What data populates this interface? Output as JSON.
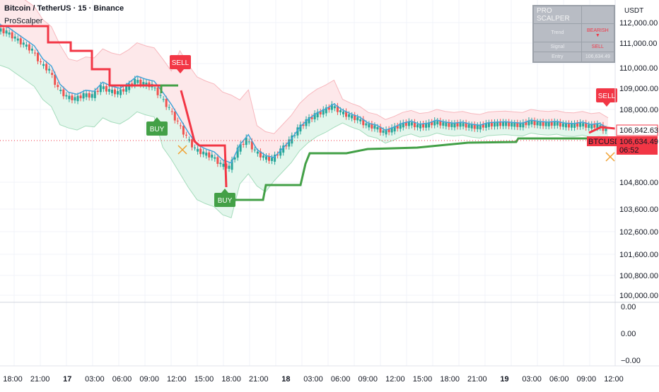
{
  "header": {
    "symbol_title": "Bitcoin / TetherUS · 15 · Binance",
    "indicator_name": "ProScalper",
    "currency": "USDT"
  },
  "hud": {
    "title": "PRO SCALPER",
    "rows": [
      {
        "label": "Trend",
        "value": "BEARISH ▼"
      },
      {
        "label": "Signal",
        "value": "SELL"
      },
      {
        "label": "Entry",
        "value": "106,634.49"
      }
    ]
  },
  "price_axis": {
    "labels": [
      "112,000.00",
      "111,000.00",
      "110,000.00",
      "109,000.00",
      "108,000.00",
      "104,800.00",
      "103,600.00",
      "102,600.00",
      "101,600.00",
      "100,800.00",
      "100,000.00"
    ],
    "current_price": "106,842.63",
    "last_price": "106,634.49",
    "ticker": "BTCUSDT",
    "countdown": "06:52"
  },
  "sub_axis": {
    "labels": [
      "0.00",
      "0.00",
      "−0.00"
    ]
  },
  "time_axis": {
    "labels": [
      "18:00",
      "21:00",
      "17",
      "03:00",
      "06:00",
      "09:00",
      "12:00",
      "15:00",
      "18:00",
      "21:00",
      "18",
      "03:00",
      "06:00",
      "09:00",
      "12:00",
      "15:00",
      "18:00",
      "21:00",
      "19",
      "03:00",
      "06:00",
      "09:00",
      "12:00"
    ],
    "bold": [
      "17",
      "18",
      "19"
    ]
  },
  "signals": [
    {
      "type": "SELL",
      "label": "SELL"
    },
    {
      "type": "BUY",
      "label": "BUY"
    },
    {
      "type": "BUY",
      "label": "BUY"
    },
    {
      "type": "SELL",
      "label": "SELL"
    }
  ],
  "colors": {
    "bear": "#f23645",
    "bull": "#43a047",
    "candle_up": "#26a69a",
    "candle_down": "#ef5350",
    "midline": "#42a5d8",
    "upper_band_fill": "#fde8ea",
    "lower_band_fill": "#e3f6ec",
    "cross": "#f0a030"
  },
  "chart_data": {
    "type": "candlestick",
    "symbol": "BTCUSDT",
    "interval": "15",
    "ylim": [
      99800,
      112400
    ],
    "close_series": [
      111650,
      111500,
      111200,
      110900,
      110600,
      109950,
      109600,
      108700,
      108300,
      108200,
      108400,
      108350,
      108800,
      108600,
      108500,
      108750,
      109100,
      108950,
      108850,
      108300,
      107700,
      107000,
      106300,
      105700,
      105500,
      105350,
      104950,
      104800,
      105700,
      106200,
      105600,
      105300,
      105200,
      105650,
      106100,
      106700,
      107100,
      107400,
      107600,
      107850,
      107550,
      107350,
      107200,
      106900,
      106800,
      106550,
      106700,
      106900,
      107000,
      106850,
      106900,
      107050,
      106950,
      106900,
      106950,
      106850,
      106800,
      106920,
      106950,
      106970,
      106930,
      106900,
      107050,
      106980,
      106950,
      106990,
      106900,
      106880,
      106950,
      106840,
      106890,
      106634.49
    ]
  }
}
